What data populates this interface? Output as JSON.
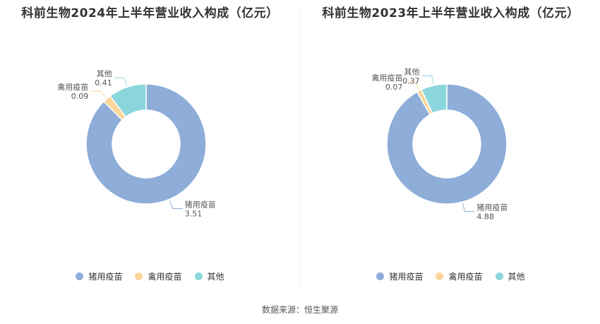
{
  "colors": {
    "pig": "#8eadd9",
    "poultry": "#fbd59b",
    "other": "#8ad6dc",
    "line": "#999999"
  },
  "legend": {
    "pig": "猪用疫苗",
    "poultry": "禽用疫苗",
    "other": "其他"
  },
  "source": "数据来源：恒生聚源",
  "chart_data": [
    {
      "type": "pie",
      "title": "科前生物2024年上半年营业收入构成（亿元）",
      "slices": [
        {
          "name": "猪用疫苗",
          "value": 3.51,
          "value_label": "3.51"
        },
        {
          "name": "禽用疫苗",
          "value": 0.09,
          "value_label": "0.09"
        },
        {
          "name": "其他",
          "value": 0.41,
          "value_label": "0.41"
        }
      ]
    },
    {
      "type": "pie",
      "title": "科前生物2023年上半年营业收入构成（亿元）",
      "slices": [
        {
          "name": "猪用疫苗",
          "value": 4.88,
          "value_label": "4.88"
        },
        {
          "name": "禽用疫苗",
          "value": 0.07,
          "value_label": "0.07"
        },
        {
          "name": "其他",
          "value": 0.37,
          "value_label": "0.37"
        }
      ]
    }
  ]
}
